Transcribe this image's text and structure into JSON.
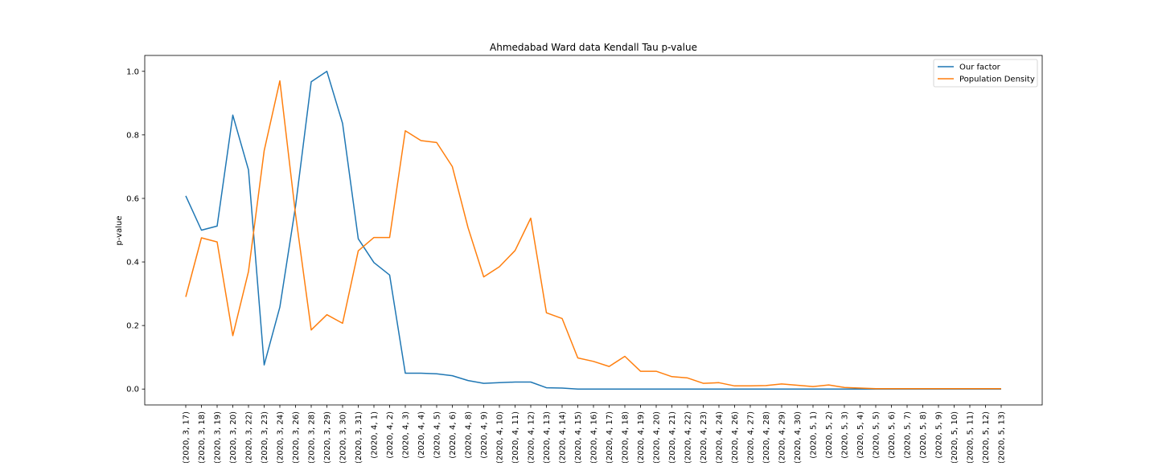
{
  "chart_data": {
    "type": "line",
    "title": "Ahmedabad Ward data Kendall Tau p-value",
    "xlabel": "",
    "ylabel": "p-value",
    "ylim": [
      -0.05,
      1.05
    ],
    "yticks": [
      "0.0",
      "0.2",
      "0.4",
      "0.6",
      "0.8",
      "1.0"
    ],
    "ytick_values": [
      0.0,
      0.2,
      0.4,
      0.6,
      0.8,
      1.0
    ],
    "grid": false,
    "legend_position": "upper right",
    "categories": [
      "(2020, 3, 17)",
      "(2020, 3, 18)",
      "(2020, 3, 19)",
      "(2020, 3, 20)",
      "(2020, 3, 22)",
      "(2020, 3, 23)",
      "(2020, 3, 24)",
      "(2020, 3, 26)",
      "(2020, 3, 28)",
      "(2020, 3, 29)",
      "(2020, 3, 30)",
      "(2020, 3, 31)",
      "(2020, 4, 1)",
      "(2020, 4, 2)",
      "(2020, 4, 3)",
      "(2020, 4, 4)",
      "(2020, 4, 5)",
      "(2020, 4, 6)",
      "(2020, 4, 8)",
      "(2020, 4, 9)",
      "(2020, 4, 10)",
      "(2020, 4, 11)",
      "(2020, 4, 12)",
      "(2020, 4, 13)",
      "(2020, 4, 14)",
      "(2020, 4, 15)",
      "(2020, 4, 16)",
      "(2020, 4, 17)",
      "(2020, 4, 18)",
      "(2020, 4, 19)",
      "(2020, 4, 20)",
      "(2020, 4, 21)",
      "(2020, 4, 22)",
      "(2020, 4, 23)",
      "(2020, 4, 24)",
      "(2020, 4, 26)",
      "(2020, 4, 27)",
      "(2020, 4, 28)",
      "(2020, 4, 29)",
      "(2020, 4, 30)",
      "(2020, 5, 1)",
      "(2020, 5, 2)",
      "(2020, 5, 3)",
      "(2020, 5, 4)",
      "(2020, 5, 5)",
      "(2020, 5, 6)",
      "(2020, 5, 7)",
      "(2020, 5, 8)",
      "(2020, 5, 9)",
      "(2020, 5, 10)",
      "(2020, 5, 11)",
      "(2020, 5, 12)",
      "(2020, 5, 13)"
    ],
    "series": [
      {
        "name": "Our factor",
        "color": "#1f77b4",
        "values": [
          0.608,
          0.5,
          0.513,
          0.862,
          0.69,
          0.076,
          0.258,
          0.575,
          0.967,
          1.0,
          0.836,
          0.473,
          0.398,
          0.359,
          0.05,
          0.05,
          0.048,
          0.042,
          0.027,
          0.018,
          0.02,
          0.022,
          0.022,
          0.004,
          0.003,
          0.0,
          0.0,
          0.0,
          0.0,
          0.0,
          0.0,
          0.0,
          0.0,
          0.0,
          0.0,
          0.0,
          0.0,
          0.0,
          0.0,
          0.0,
          0.0,
          0.0,
          0.0,
          0.0,
          0.0,
          0.0,
          0.0,
          0.0,
          0.0,
          0.0,
          0.0,
          0.0,
          0.0
        ]
      },
      {
        "name": "Population Density",
        "color": "#ff7f0e",
        "values": [
          0.29,
          0.476,
          0.463,
          0.168,
          0.37,
          0.75,
          0.97,
          0.55,
          0.186,
          0.234,
          0.207,
          0.435,
          0.477,
          0.477,
          0.813,
          0.782,
          0.776,
          0.7,
          0.508,
          0.353,
          0.385,
          0.436,
          0.538,
          0.24,
          0.222,
          0.098,
          0.087,
          0.071,
          0.103,
          0.056,
          0.056,
          0.039,
          0.035,
          0.018,
          0.02,
          0.01,
          0.01,
          0.011,
          0.016,
          0.012,
          0.008,
          0.013,
          0.005,
          0.003,
          0.001,
          0.001,
          0.001,
          0.001,
          0.001,
          0.001,
          0.001,
          0.001,
          0.001
        ]
      }
    ]
  }
}
